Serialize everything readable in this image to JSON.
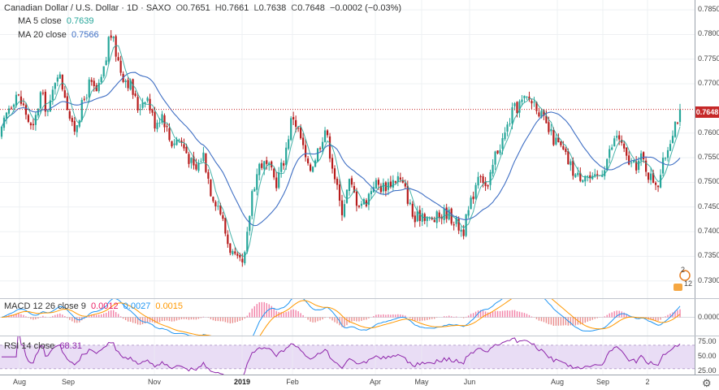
{
  "header": {
    "symbol": "Canadian Dollar / U.S. Dollar · 1D · SAXO",
    "open_label": "O",
    "open": "0.7651",
    "high_label": "H",
    "high": "0.7661",
    "low_label": "L",
    "low": "0.7638",
    "close_label": "C",
    "close": "0.7648",
    "change": "−0.0002 (−0.03%)"
  },
  "ma5": {
    "label": "MA  5 close",
    "value": "0.7639"
  },
  "ma20": {
    "label": "MA  20 close",
    "value": "0.7566"
  },
  "macd": {
    "label": "MACD 12 26 close 9",
    "hist": "0.0012",
    "macd": "0.0027",
    "signal": "0.0015"
  },
  "rsi": {
    "label": "RSI 14 close",
    "value": "68.31"
  },
  "last_price_badge": "0.7648",
  "events_markers": {
    "upper": "2",
    "lower": "12"
  },
  "colors": {
    "up": "#26a69a",
    "down": "#b71c1c",
    "ma5": "#26a69a",
    "ma20": "#3f6fc4",
    "macd_line": "#2196f3",
    "signal_line": "#ff9800",
    "rsi_line": "#8e24aa",
    "rsi_band": "#e9ddf5",
    "price_line": "#c62828"
  },
  "chart_data": [
    {
      "type": "candlestick",
      "title": "Canadian Dollar / U.S. Dollar · 1D · SAXO",
      "x_tick_labels": [
        "Aug",
        "Sep",
        "Nov",
        "2019",
        "Feb",
        "Apr",
        "May",
        "Jun",
        "Aug",
        "Sep",
        "2"
      ],
      "y_tick_labels": [
        "0.7850",
        "0.7800",
        "0.7750",
        "0.7700",
        "0.7600",
        "0.7550",
        "0.7500",
        "0.7450",
        "0.7400",
        "0.7350",
        "0.7300"
      ],
      "ylim": [
        0.7265,
        0.787
      ],
      "last_price": 0.7648,
      "close_path": [
        [
          0,
          0.759
        ],
        [
          10,
          0.765
        ],
        [
          20,
          0.768
        ],
        [
          30,
          0.765
        ],
        [
          40,
          0.76
        ],
        [
          50,
          0.768
        ],
        [
          60,
          0.764
        ],
        [
          70,
          0.773
        ],
        [
          80,
          0.768
        ],
        [
          90,
          0.76
        ],
        [
          100,
          0.765
        ],
        [
          110,
          0.77
        ],
        [
          120,
          0.768
        ],
        [
          130,
          0.774
        ],
        [
          135,
          0.781
        ],
        [
          140,
          0.778
        ],
        [
          150,
          0.772
        ],
        [
          160,
          0.77
        ],
        [
          170,
          0.765
        ],
        [
          180,
          0.768
        ],
        [
          190,
          0.762
        ],
        [
          200,
          0.764
        ],
        [
          210,
          0.758
        ],
        [
          220,
          0.759
        ],
        [
          230,
          0.756
        ],
        [
          240,
          0.752
        ],
        [
          250,
          0.756
        ],
        [
          260,
          0.748
        ],
        [
          270,
          0.745
        ],
        [
          280,
          0.738
        ],
        [
          290,
          0.734
        ],
        [
          300,
          0.733
        ],
        [
          305,
          0.74
        ],
        [
          310,
          0.748
        ],
        [
          320,
          0.754
        ],
        [
          330,
          0.753
        ],
        [
          340,
          0.75
        ],
        [
          350,
          0.755
        ],
        [
          360,
          0.764
        ],
        [
          370,
          0.759
        ],
        [
          380,
          0.752
        ],
        [
          390,
          0.756
        ],
        [
          400,
          0.761
        ],
        [
          410,
          0.753
        ],
        [
          420,
          0.744
        ],
        [
          430,
          0.75
        ],
        [
          440,
          0.746
        ],
        [
          450,
          0.746
        ],
        [
          460,
          0.75
        ],
        [
          470,
          0.749
        ],
        [
          480,
          0.75
        ],
        [
          490,
          0.751
        ],
        [
          500,
          0.748
        ],
        [
          510,
          0.742
        ],
        [
          520,
          0.744
        ],
        [
          530,
          0.742
        ],
        [
          540,
          0.743
        ],
        [
          550,
          0.744
        ],
        [
          560,
          0.742
        ],
        [
          570,
          0.74
        ],
        [
          580,
          0.746
        ],
        [
          590,
          0.753
        ],
        [
          600,
          0.748
        ],
        [
          610,
          0.756
        ],
        [
          620,
          0.759
        ],
        [
          630,
          0.764
        ],
        [
          640,
          0.766
        ],
        [
          650,
          0.767
        ],
        [
          660,
          0.766
        ],
        [
          670,
          0.762
        ],
        [
          680,
          0.759
        ],
        [
          690,
          0.757
        ],
        [
          700,
          0.754
        ],
        [
          710,
          0.751
        ],
        [
          720,
          0.752
        ],
        [
          730,
          0.75
        ],
        [
          740,
          0.752
        ],
        [
          750,
          0.756
        ],
        [
          760,
          0.76
        ],
        [
          770,
          0.755
        ],
        [
          780,
          0.753
        ],
        [
          790,
          0.755
        ],
        [
          800,
          0.751
        ],
        [
          810,
          0.75
        ],
        [
          820,
          0.756
        ],
        [
          830,
          0.762
        ],
        [
          840,
          0.7648
        ]
      ],
      "series": [
        {
          "name": "MA 5 close"
        },
        {
          "name": "MA 20 close"
        }
      ]
    },
    {
      "type": "line",
      "title": "MACD 12 26 close 9",
      "y_tick_labels": [
        "0.0000"
      ],
      "ylim": [
        -0.0032,
        0.0032
      ]
    },
    {
      "type": "line",
      "title": "RSI 14 close",
      "y_tick_labels": [
        "75.00",
        "50.00",
        "25.00"
      ],
      "ylim": [
        20,
        85
      ],
      "band": [
        30,
        70
      ]
    }
  ]
}
